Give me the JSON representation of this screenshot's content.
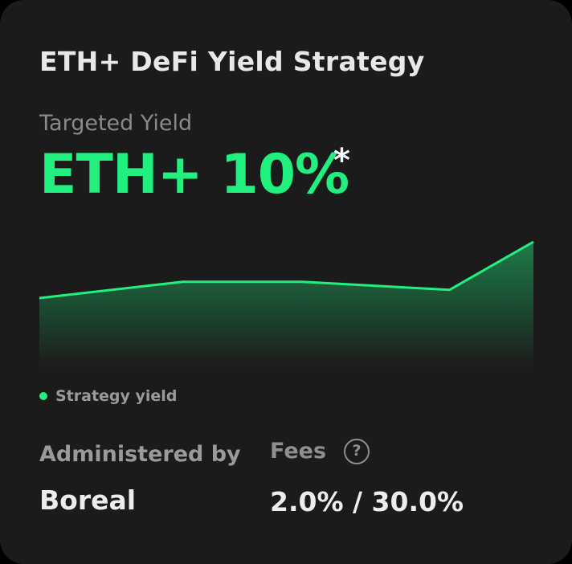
{
  "card": {
    "title": "ETH+ DeFi Yield Strategy",
    "targeted_yield_label": "Targeted Yield",
    "targeted_yield_value": "ETH+ 10%",
    "targeted_yield_marker": "*"
  },
  "chart_data": {
    "type": "area",
    "series": [
      {
        "name": "Strategy yield",
        "values": [
          0.38,
          0.56,
          0.56,
          0.47,
          1.0
        ]
      }
    ],
    "x_points": [
      0,
      0.29,
      0.53,
      0.83,
      1.0
    ],
    "color": "#21f07f",
    "legend_position": "bottom-left",
    "grid": false
  },
  "legend": {
    "label": "Strategy yield"
  },
  "details": {
    "administered_label": "Administered by",
    "administered_value": "Boreal",
    "fees_label": "Fees",
    "fees_help_icon": "question-circle-icon",
    "fees_value": "2.0% / 30.0%"
  },
  "colors": {
    "accent": "#21f07f",
    "background": "#1b1b1b"
  }
}
